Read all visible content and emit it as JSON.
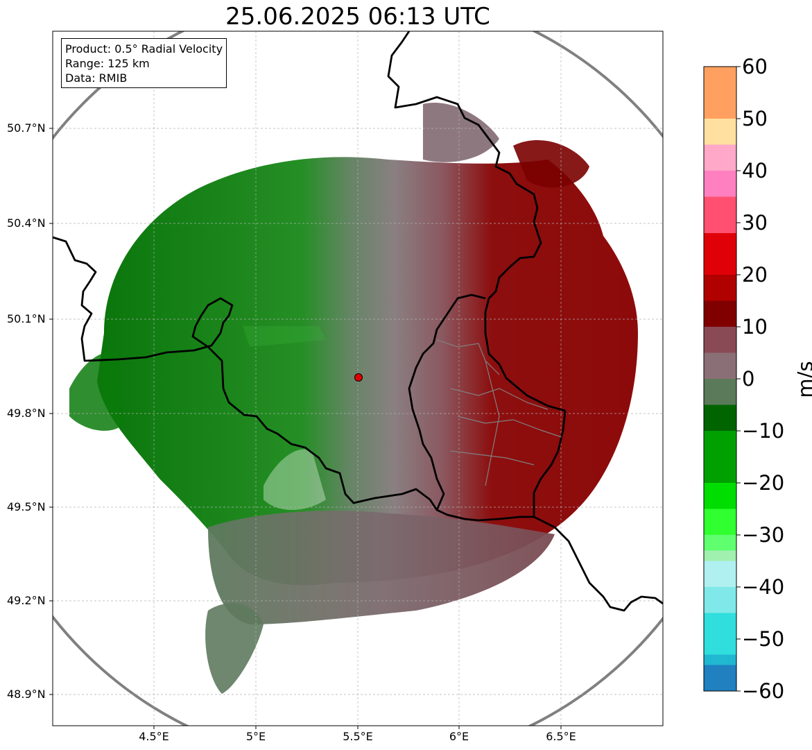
{
  "title": "25.06.2025 06:13 UTC",
  "info": {
    "product": "Product: 0.5° Radial Velocity",
    "range": "Range: 125 km",
    "data": "Data: RMIB"
  },
  "lat_labels": [
    "48.9°N",
    "49.2°N",
    "49.5°N",
    "49.8°N",
    "50.1°N",
    "50.4°N",
    "50.7°N"
  ],
  "lon_labels": [
    "4.5°E",
    "5°E",
    "5.5°E",
    "6°E",
    "6.5°E"
  ],
  "colorbar": {
    "unit": "m/s",
    "ticks": [
      "60",
      "50",
      "40",
      "30",
      "20",
      "10",
      "0",
      "−10",
      "−20",
      "−30",
      "−40",
      "−50",
      "−60"
    ],
    "range": [
      -60,
      60
    ],
    "bands": [
      {
        "from": 50,
        "to": 60,
        "color": "#ffa060"
      },
      {
        "from": 45,
        "to": 50,
        "color": "#ffe0a0"
      },
      {
        "from": 40,
        "to": 45,
        "color": "#ffa8c8"
      },
      {
        "from": 35,
        "to": 40,
        "color": "#ff80c0"
      },
      {
        "from": 28,
        "to": 35,
        "color": "#ff5070"
      },
      {
        "from": 20,
        "to": 28,
        "color": "#e00008"
      },
      {
        "from": 15,
        "to": 20,
        "color": "#b00000"
      },
      {
        "from": 10,
        "to": 15,
        "color": "#800000"
      },
      {
        "from": 5,
        "to": 10,
        "color": "#8a4a55"
      },
      {
        "from": 0,
        "to": 5,
        "color": "#8a7076"
      },
      {
        "from": -5,
        "to": 0,
        "color": "#5a7a5a"
      },
      {
        "from": -10,
        "to": -5,
        "color": "#006400"
      },
      {
        "from": -20,
        "to": -10,
        "color": "#00a000"
      },
      {
        "from": -25,
        "to": -20,
        "color": "#00dd00"
      },
      {
        "from": -30,
        "to": -25,
        "color": "#30ff30"
      },
      {
        "from": -33,
        "to": -30,
        "color": "#60ff70"
      },
      {
        "from": -35,
        "to": -33,
        "color": "#a0f0b0"
      },
      {
        "from": -40,
        "to": -35,
        "color": "#b0f0f0"
      },
      {
        "from": -45,
        "to": -40,
        "color": "#80e8e8"
      },
      {
        "from": -53,
        "to": -45,
        "color": "#30dede"
      },
      {
        "from": -55,
        "to": -53,
        "color": "#20b8d0"
      },
      {
        "from": -60,
        "to": -55,
        "color": "#2080c0"
      }
    ]
  },
  "radar_site": {
    "lon": 5.5,
    "lat": 49.92,
    "color": "#e00000"
  },
  "extent": {
    "lon": [
      4.0,
      7.0
    ],
    "lat": [
      48.8,
      51.0
    ]
  }
}
